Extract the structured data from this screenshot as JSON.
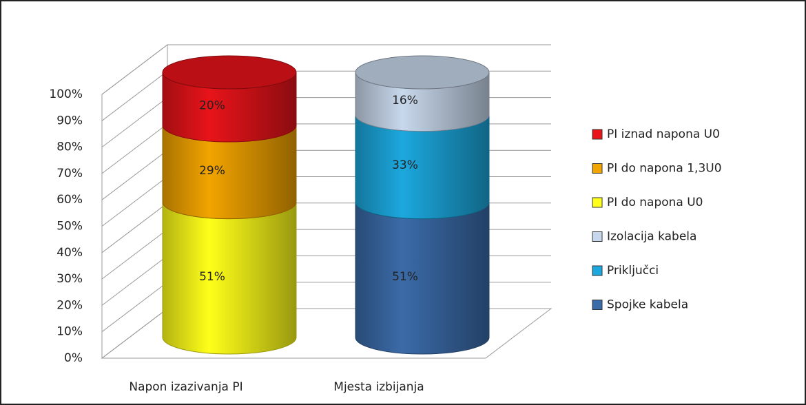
{
  "chart_data": {
    "type": "stacked_cylinder",
    "categories": [
      "Napon izazivanja PI",
      "Mjesta izbijanja"
    ],
    "series": [
      {
        "name": "PI iznad napona U0",
        "color": "#e8141a",
        "values": [
          20,
          null
        ],
        "value_labels": [
          "20%",
          null
        ]
      },
      {
        "name": "PI do napona 1,3U0",
        "color": "#f2a400",
        "values": [
          29,
          null
        ],
        "value_labels": [
          "29%",
          null
        ]
      },
      {
        "name": "PI do napona U0",
        "color": "#ffff1a",
        "values": [
          51,
          null
        ],
        "value_labels": [
          "51%",
          null
        ]
      },
      {
        "name": "Izolacija kabela",
        "color": "#c8d8ec",
        "values": [
          null,
          16
        ],
        "value_labels": [
          null,
          "16%"
        ]
      },
      {
        "name": "Priključci",
        "color": "#1ca8de",
        "values": [
          null,
          33
        ],
        "value_labels": [
          null,
          "33%"
        ]
      },
      {
        "name": "Spojke kabela",
        "color": "#3b6ba8",
        "values": [
          null,
          51
        ],
        "value_labels": [
          null,
          "51%"
        ]
      }
    ],
    "ylim": [
      0,
      100
    ],
    "yticks": [
      {
        "value": 0,
        "label": "0%"
      },
      {
        "value": 10,
        "label": "10%"
      },
      {
        "value": 20,
        "label": "20%"
      },
      {
        "value": 30,
        "label": "30%"
      },
      {
        "value": 40,
        "label": "40%"
      },
      {
        "value": 50,
        "label": "50%"
      },
      {
        "value": 60,
        "label": "60%"
      },
      {
        "value": 70,
        "label": "70%"
      },
      {
        "value": 80,
        "label": "80%"
      },
      {
        "value": 90,
        "label": "90%"
      },
      {
        "value": 100,
        "label": "100%"
      }
    ],
    "grid": true,
    "legend": "right"
  }
}
